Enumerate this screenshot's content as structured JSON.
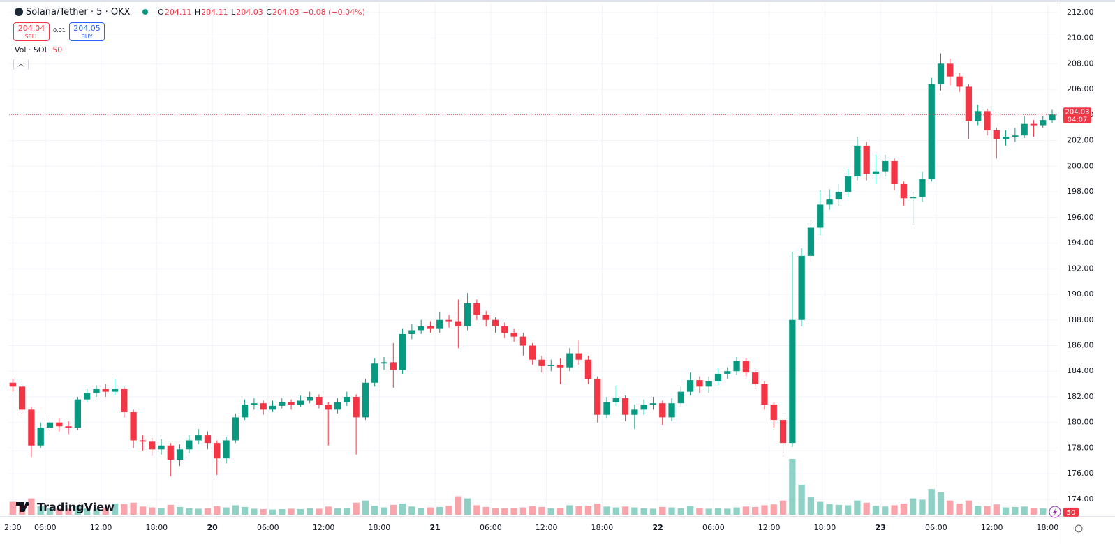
{
  "header": {
    "symbol": "Solana/Tether · 5 · OKX",
    "ohlc": [
      {
        "key": "O",
        "value": "204.11"
      },
      {
        "key": "H",
        "value": "204.11"
      },
      {
        "key": "L",
        "value": "204.03"
      },
      {
        "key": "C",
        "value": "204.03"
      }
    ],
    "change": "−0.08 (−0.04%)"
  },
  "trade": {
    "sell_price": "204.04",
    "sell": "SELL",
    "spread": "0.01",
    "buy_price": "204.05",
    "buy": "BUY"
  },
  "volume_legend": {
    "label": "Vol · SOL",
    "length": "50"
  },
  "brand": "TradingView",
  "chart_data": {
    "type": "candlestick",
    "up_color": "#089981",
    "down_color": "#f23645",
    "x": [
      2,
      3,
      4,
      5,
      6,
      7,
      8,
      9,
      10,
      11,
      12,
      13,
      14,
      15,
      16,
      17,
      18,
      19,
      20,
      21,
      22,
      23,
      24,
      25,
      26,
      27,
      28,
      29,
      30,
      31,
      32,
      33,
      34,
      35,
      36,
      37,
      38,
      39,
      40,
      41,
      42,
      43,
      44,
      45,
      46,
      47,
      48,
      49,
      50,
      51,
      52,
      53,
      54,
      55,
      56,
      57,
      58,
      59,
      60,
      61,
      62,
      63,
      64,
      65,
      66,
      67,
      68,
      69,
      70,
      71,
      72,
      73,
      74,
      75,
      76,
      77,
      78,
      79,
      80,
      81,
      82,
      83,
      84,
      85,
      86,
      87,
      88,
      89,
      90,
      91,
      92,
      93,
      94,
      95,
      96,
      97,
      98,
      99,
      100,
      101,
      102,
      103,
      104,
      105,
      106,
      107,
      108,
      109,
      110,
      111,
      112,
      113,
      114
    ],
    "open": [
      183.1,
      182.8,
      181.0,
      178.2,
      179.6,
      180.0,
      179.7,
      179.6,
      181.8,
      182.3,
      182.6,
      182.4,
      182.6,
      180.8,
      178.6,
      178.5,
      177.9,
      178.2,
      177.1,
      177.9,
      178.6,
      179.0,
      178.4,
      177.2,
      178.6,
      180.4,
      181.4,
      181.5,
      181.0,
      181.3,
      181.6,
      181.4,
      181.7,
      182.0,
      181.4,
      181.0,
      181.6,
      182.0,
      180.4,
      183.1,
      184.6,
      184.7,
      184.1,
      186.9,
      187.2,
      187.5,
      187.3,
      188.0,
      187.9,
      187.5,
      189.3,
      188.4,
      188.0,
      187.5,
      187.0,
      186.7,
      186.0,
      184.9,
      184.4,
      184.5,
      184.3,
      185.4,
      184.9,
      183.4,
      180.6,
      181.6,
      181.9,
      180.6,
      181.0,
      181.4,
      181.5,
      180.4,
      181.5,
      182.4,
      183.3,
      182.8,
      183.2,
      183.8,
      184.0,
      184.8,
      183.9,
      183.0,
      181.4,
      180.2,
      178.4,
      188.0,
      193.0,
      195.2,
      197.0,
      197.4,
      198.0,
      199.2,
      201.6,
      199.4,
      199.6,
      200.4,
      198.6,
      197.5,
      197.6,
      199.0,
      206.4,
      208.0,
      207.0,
      206.2,
      203.5,
      204.3,
      202.8,
      202.1,
      202.3,
      202.4,
      203.3,
      203.2,
      203.6
    ],
    "high": [
      183.4,
      183.0,
      181.2,
      180.0,
      180.4,
      180.3,
      180.1,
      182.0,
      182.6,
      182.9,
      183.0,
      183.4,
      182.8,
      181.0,
      179.0,
      178.8,
      178.7,
      178.4,
      178.3,
      179.0,
      179.5,
      179.3,
      178.6,
      178.9,
      180.7,
      181.8,
      181.9,
      181.7,
      181.7,
      181.9,
      181.8,
      182.1,
      182.4,
      182.2,
      181.6,
      181.9,
      182.4,
      182.2,
      183.4,
      185.0,
      185.1,
      186.2,
      187.3,
      187.7,
      188.0,
      187.9,
      188.6,
      188.4,
      189.6,
      190.1,
      189.6,
      188.7,
      188.2,
      187.8,
      187.3,
      187.0,
      186.2,
      185.2,
      184.9,
      185.0,
      185.8,
      186.4,
      185.2,
      183.6,
      182.0,
      182.9,
      182.1,
      181.4,
      181.8,
      182.0,
      181.7,
      181.9,
      182.8,
      183.9,
      183.6,
      183.6,
      184.2,
      184.3,
      185.1,
      185.0,
      184.1,
      183.2,
      181.6,
      180.4,
      193.3,
      193.6,
      195.8,
      198.1,
      198.2,
      198.6,
      199.8,
      202.3,
      201.9,
      200.9,
      200.9,
      200.6,
      198.8,
      198.0,
      199.6,
      206.9,
      208.8,
      208.4,
      207.3,
      206.4,
      204.8,
      204.5,
      203.0,
      202.8,
      203.0,
      203.9,
      203.6,
      203.9,
      204.4
    ],
    "low": [
      182.4,
      180.7,
      177.3,
      178.0,
      179.3,
      179.3,
      179.1,
      179.4,
      181.6,
      182.0,
      182.0,
      182.1,
      180.4,
      178.0,
      177.8,
      177.4,
      177.5,
      175.8,
      176.6,
      177.6,
      178.3,
      177.9,
      175.9,
      176.8,
      178.4,
      180.2,
      181.0,
      180.6,
      180.8,
      181.1,
      181.0,
      181.2,
      181.5,
      181.1,
      178.2,
      180.7,
      181.3,
      177.5,
      180.2,
      182.8,
      184.1,
      182.7,
      183.8,
      186.5,
      186.9,
      187.0,
      187.0,
      187.4,
      185.8,
      187.2,
      188.0,
      187.5,
      187.0,
      186.6,
      186.3,
      185.2,
      184.5,
      183.9,
      184.0,
      183.0,
      184.0,
      184.5,
      183.0,
      180.0,
      180.3,
      181.3,
      180.1,
      179.5,
      180.6,
      181.0,
      179.8,
      180.1,
      181.2,
      182.1,
      182.3,
      182.3,
      182.9,
      183.4,
      183.7,
      183.6,
      182.6,
      181.0,
      179.6,
      177.3,
      178.1,
      187.5,
      192.6,
      194.6,
      196.6,
      196.9,
      197.6,
      198.9,
      198.9,
      198.6,
      199.2,
      198.1,
      196.9,
      195.4,
      197.2,
      198.8,
      205.9,
      206.3,
      205.8,
      202.1,
      203.2,
      202.4,
      200.6,
      201.6,
      201.9,
      202.2,
      202.3,
      203.0,
      203.4
    ],
    "close": [
      182.8,
      181.0,
      178.2,
      179.6,
      180.0,
      179.7,
      179.6,
      181.8,
      182.3,
      182.6,
      182.4,
      182.6,
      180.8,
      178.6,
      178.5,
      177.9,
      178.2,
      177.1,
      177.9,
      178.6,
      179.0,
      178.4,
      177.2,
      178.6,
      180.4,
      181.4,
      181.5,
      181.0,
      181.3,
      181.6,
      181.4,
      181.7,
      182.0,
      181.4,
      181.0,
      181.6,
      182.0,
      180.4,
      183.1,
      184.6,
      184.7,
      184.1,
      186.9,
      187.2,
      187.5,
      187.3,
      188.0,
      187.9,
      187.5,
      189.3,
      188.4,
      188.0,
      187.5,
      187.0,
      186.7,
      186.0,
      184.9,
      184.4,
      184.5,
      184.3,
      185.4,
      184.9,
      183.4,
      180.6,
      181.6,
      181.9,
      180.6,
      181.0,
      181.4,
      181.5,
      180.4,
      181.5,
      182.4,
      183.3,
      182.8,
      183.2,
      183.8,
      184.0,
      184.8,
      183.9,
      183.0,
      181.4,
      180.2,
      178.4,
      188.0,
      193.0,
      195.2,
      197.0,
      197.4,
      198.0,
      199.2,
      201.6,
      199.4,
      199.6,
      200.4,
      198.6,
      197.5,
      197.6,
      199.0,
      206.4,
      208.0,
      207.0,
      206.2,
      203.5,
      204.3,
      202.8,
      202.1,
      202.3,
      202.4,
      203.3,
      203.2,
      203.6,
      204.03
    ],
    "volume": [
      300,
      220,
      380,
      200,
      160,
      150,
      140,
      200,
      150,
      140,
      170,
      260,
      250,
      280,
      190,
      170,
      160,
      230,
      180,
      150,
      140,
      150,
      200,
      170,
      220,
      180,
      140,
      130,
      120,
      130,
      140,
      130,
      150,
      140,
      190,
      150,
      160,
      280,
      330,
      210,
      170,
      230,
      260,
      190,
      160,
      170,
      180,
      210,
      430,
      380,
      220,
      180,
      160,
      150,
      160,
      170,
      200,
      180,
      150,
      160,
      220,
      200,
      210,
      260,
      190,
      170,
      190,
      170,
      150,
      140,
      180,
      170,
      150,
      200,
      160,
      140,
      150,
      140,
      170,
      190,
      180,
      220,
      240,
      330,
      1300,
      700,
      420,
      300,
      250,
      230,
      220,
      330,
      280,
      210,
      190,
      220,
      260,
      380,
      350,
      600,
      520,
      330,
      260,
      330,
      210,
      200,
      240,
      170,
      180,
      190,
      160,
      150,
      50
    ],
    "ylim": [
      172.8,
      212.7
    ],
    "yticks": [
      {
        "value": 174,
        "label": "174.00"
      },
      {
        "value": 176,
        "label": "176.00"
      },
      {
        "value": 178,
        "label": "178.00"
      },
      {
        "value": 180,
        "label": "180.00"
      },
      {
        "value": 182,
        "label": "182.00"
      },
      {
        "value": 184,
        "label": "184.00"
      },
      {
        "value": 186,
        "label": "186.00"
      },
      {
        "value": 188,
        "label": "188.00"
      },
      {
        "value": 190,
        "label": "190.00"
      },
      {
        "value": 192,
        "label": "192.00"
      },
      {
        "value": 194,
        "label": "194.00"
      },
      {
        "value": 196,
        "label": "196.00"
      },
      {
        "value": 198,
        "label": "198.00"
      },
      {
        "value": 200,
        "label": "200.00"
      },
      {
        "value": 202,
        "label": "202.00"
      },
      {
        "value": 204,
        "label": "204.00"
      },
      {
        "value": 206,
        "label": "206.00"
      },
      {
        "value": 208,
        "label": "208.00"
      },
      {
        "value": 210,
        "label": "210.00"
      },
      {
        "value": 212,
        "label": "212.00"
      }
    ],
    "xlim": [
      2.1,
      115.1
    ],
    "xticks": [
      {
        "value": 2.5,
        "label": "2:30"
      },
      {
        "value": 6,
        "label": "06:00"
      },
      {
        "value": 12,
        "label": "12:00"
      },
      {
        "value": 18,
        "label": "18:00"
      },
      {
        "value": 24,
        "label": "20"
      },
      {
        "value": 30,
        "label": "06:00"
      },
      {
        "value": 36,
        "label": "12:00"
      },
      {
        "value": 42,
        "label": "18:00"
      },
      {
        "value": 48,
        "label": "21"
      },
      {
        "value": 54,
        "label": "06:00"
      },
      {
        "value": 60,
        "label": "12:00"
      },
      {
        "value": 66,
        "label": "18:00"
      },
      {
        "value": 72,
        "label": "22"
      },
      {
        "value": 78,
        "label": "06:00"
      },
      {
        "value": 84,
        "label": "12:00"
      },
      {
        "value": 90,
        "label": "18:00"
      },
      {
        "value": 96,
        "label": "23"
      },
      {
        "value": 102,
        "label": "06:00"
      },
      {
        "value": 108,
        "label": "12:00"
      },
      {
        "value": 114,
        "label": "18:00"
      }
    ],
    "grid": true,
    "countdown": "04:07"
  }
}
